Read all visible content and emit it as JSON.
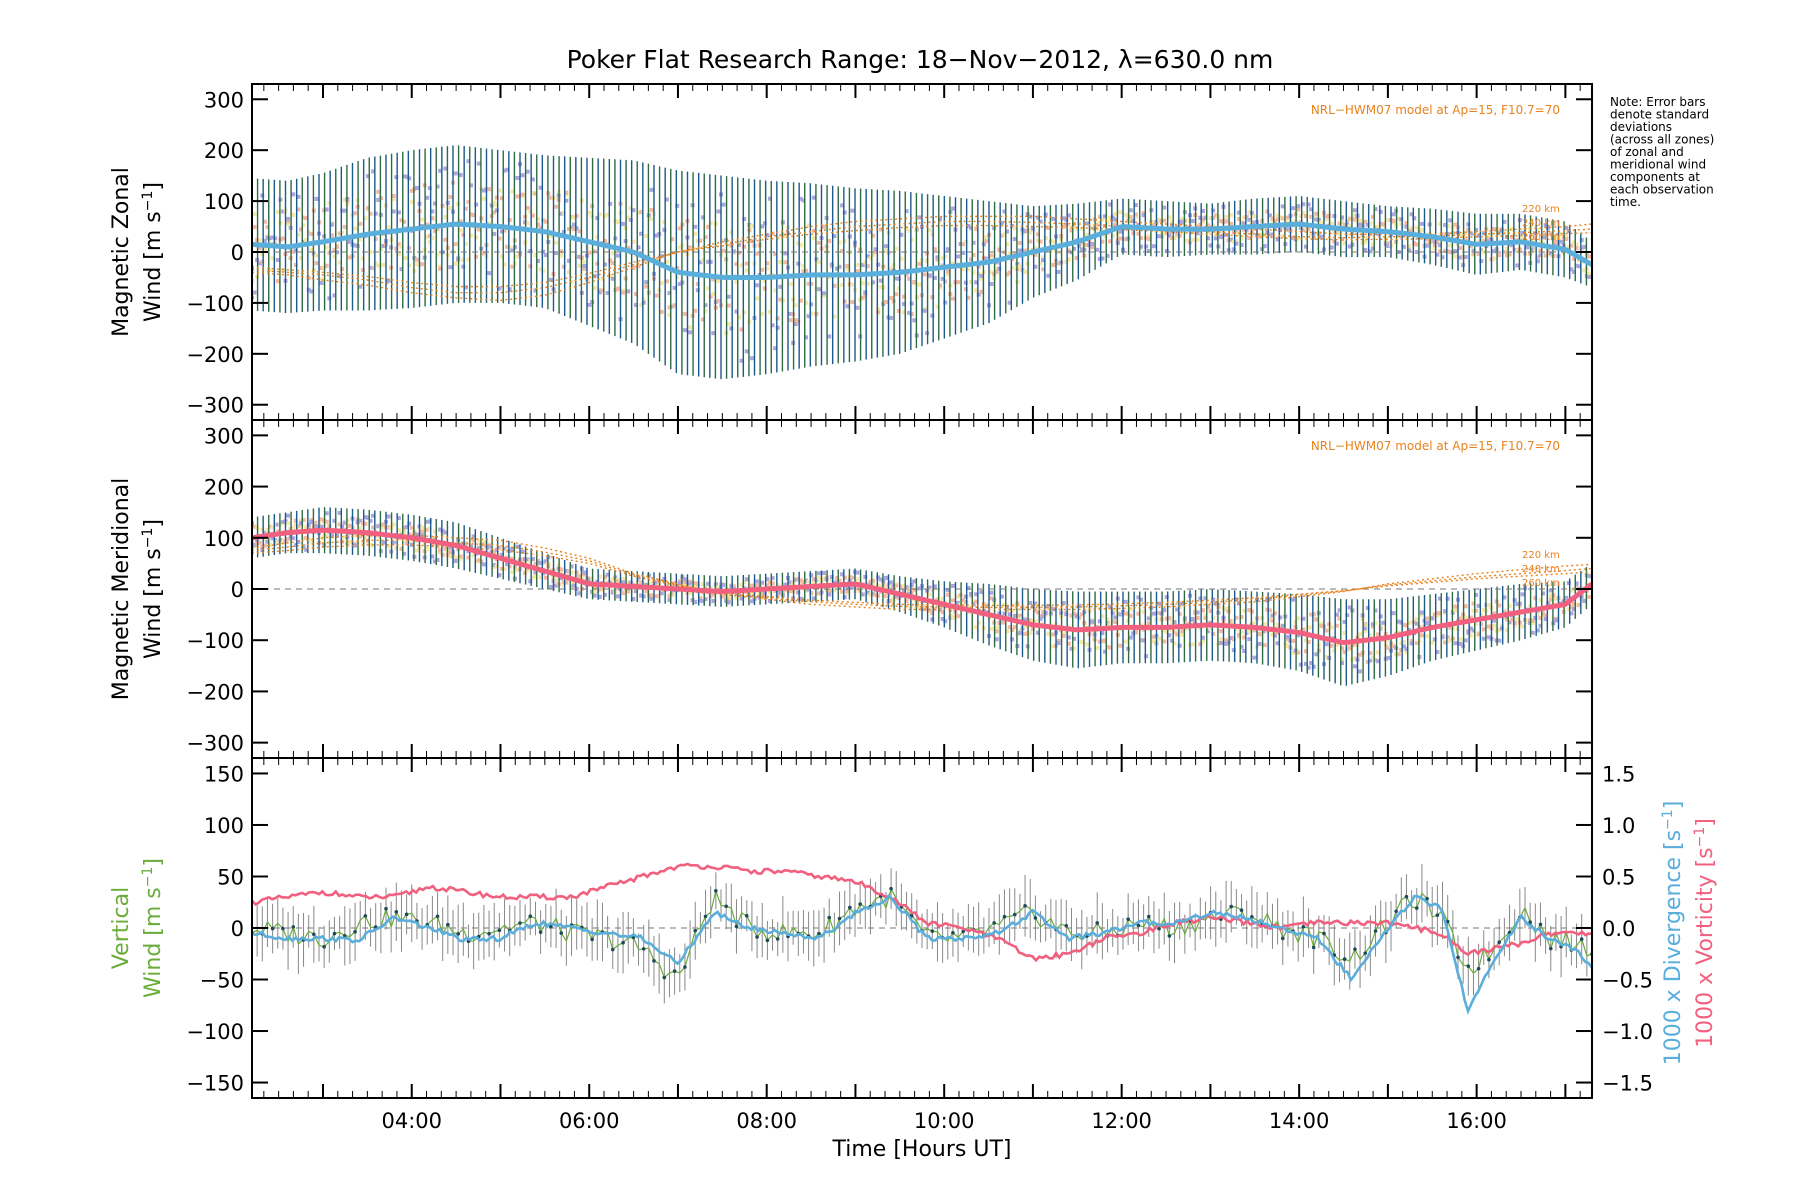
{
  "title": "Poker Flat Research Range: 18−Nov−2012, λ=630.0 nm",
  "note": [
    "Note: Error bars",
    "denote standard",
    "deviations",
    "(across all zones)",
    "of zonal and",
    "meridional wind",
    "components at",
    "each observation",
    "time."
  ],
  "colors": {
    "mean_blue": "#5aaedc",
    "mean_pink": "#f2607f",
    "err_blue": "#1a5a8c",
    "err_green": "#2f6a45",
    "zone_purple": "#aaa6e0",
    "zone_peach": "#f6b8a0",
    "zone_yellow": "#f6e8a6",
    "model_orange": "#e8821e",
    "vertical_green": "#6aac3a",
    "grey_err": "#888888"
  },
  "chart_data": [
    {
      "type": "line",
      "panel": "zonal",
      "ylabel": [
        "Magnetic Zonal",
        "Wind [m s",
        "−1",
        "]"
      ],
      "ylim": [
        -330,
        330
      ],
      "yticks": [
        300,
        200,
        100,
        0,
        -100,
        -200,
        -300
      ],
      "ytick_labels": [
        "300",
        "200",
        "100",
        "0",
        "−100",
        "−200",
        "−300"
      ],
      "model_label": "NRL−HWM07 model at Ap=15, F10.7=70",
      "model_alt_labels": [
        "220 km",
        "240 km",
        "260 km"
      ],
      "x": [
        2.2,
        2.6,
        3.0,
        3.5,
        4.0,
        4.5,
        5.0,
        5.5,
        6.0,
        6.5,
        7.0,
        7.5,
        8.0,
        8.5,
        9.0,
        9.5,
        10.0,
        10.5,
        11.0,
        11.5,
        12.0,
        12.5,
        13.0,
        13.5,
        14.0,
        14.5,
        15.0,
        15.5,
        16.0,
        16.5,
        17.0,
        17.3
      ],
      "mean": [
        15,
        10,
        20,
        35,
        45,
        55,
        50,
        40,
        20,
        0,
        -40,
        -50,
        -50,
        -45,
        -45,
        -40,
        -30,
        -20,
        0,
        20,
        50,
        45,
        45,
        50,
        55,
        45,
        40,
        30,
        15,
        20,
        5,
        -25
      ],
      "err_half": [
        130,
        130,
        135,
        150,
        155,
        155,
        150,
        150,
        165,
        180,
        200,
        200,
        190,
        180,
        170,
        160,
        140,
        120,
        90,
        75,
        55,
        55,
        50,
        55,
        55,
        55,
        50,
        55,
        60,
        55,
        55,
        45
      ],
      "models": [
        {
          "name": "220 km",
          "values": [
            -40,
            -45,
            -55,
            -65,
            -80,
            -90,
            -95,
            -85,
            -60,
            -30,
            0,
            20,
            35,
            50,
            60,
            65,
            70,
            70,
            70,
            65,
            60,
            55,
            50,
            45,
            40,
            35,
            35,
            35,
            40,
            45,
            50,
            55
          ]
        },
        {
          "name": "240 km",
          "values": [
            -35,
            -40,
            -45,
            -55,
            -70,
            -80,
            -80,
            -70,
            -50,
            -25,
            0,
            15,
            30,
            40,
            50,
            55,
            60,
            60,
            58,
            55,
            50,
            45,
            40,
            35,
            30,
            28,
            30,
            30,
            35,
            38,
            42,
            45
          ]
        },
        {
          "name": "260 km",
          "values": [
            -30,
            -35,
            -40,
            -48,
            -60,
            -68,
            -68,
            -60,
            -42,
            -20,
            0,
            12,
            25,
            35,
            42,
            48,
            52,
            52,
            50,
            48,
            44,
            40,
            35,
            30,
            26,
            24,
            25,
            26,
            30,
            32,
            36,
            38
          ]
        }
      ]
    },
    {
      "type": "line",
      "panel": "meridional",
      "ylabel": [
        "Magnetic Meridional",
        "Wind [m s",
        "−1",
        "]"
      ],
      "ylim": [
        -330,
        330
      ],
      "yticks": [
        300,
        200,
        100,
        0,
        -100,
        -200,
        -300
      ],
      "ytick_labels": [
        "300",
        "200",
        "100",
        "0",
        "−100",
        "−200",
        "−300"
      ],
      "model_label": "NRL−HWM07 model at Ap=15, F10.7=70",
      "model_alt_labels": [
        "220 km",
        "240 km",
        "260 km"
      ],
      "x": [
        2.2,
        2.6,
        3.0,
        3.5,
        4.0,
        4.5,
        5.0,
        5.5,
        6.0,
        6.5,
        7.0,
        7.5,
        8.0,
        8.5,
        9.0,
        9.5,
        10.0,
        10.5,
        11.0,
        11.5,
        12.0,
        12.5,
        13.0,
        13.5,
        14.0,
        14.5,
        15.0,
        15.5,
        16.0,
        16.5,
        17.0,
        17.3
      ],
      "mean": [
        100,
        110,
        115,
        110,
        100,
        85,
        60,
        35,
        10,
        5,
        0,
        -5,
        0,
        5,
        10,
        -10,
        -30,
        -50,
        -70,
        -80,
        -75,
        -75,
        -70,
        -75,
        -85,
        -105,
        -95,
        -75,
        -60,
        -45,
        -30,
        10
      ],
      "err_half": [
        40,
        40,
        45,
        45,
        45,
        45,
        40,
        35,
        30,
        30,
        30,
        30,
        30,
        30,
        30,
        35,
        45,
        60,
        70,
        75,
        70,
        70,
        70,
        70,
        75,
        85,
        75,
        65,
        60,
        55,
        45,
        40
      ],
      "models": [
        {
          "name": "220 km",
          "values": [
            80,
            90,
            100,
            105,
            105,
            100,
            95,
            80,
            60,
            30,
            10,
            -10,
            -20,
            -30,
            -35,
            -40,
            -40,
            -40,
            -40,
            -40,
            -38,
            -35,
            -30,
            -25,
            -15,
            -5,
            10,
            20,
            30,
            38,
            45,
            48
          ]
        },
        {
          "name": "240 km",
          "values": [
            75,
            82,
            90,
            95,
            95,
            90,
            85,
            72,
            55,
            28,
            8,
            -8,
            -18,
            -25,
            -30,
            -34,
            -35,
            -36,
            -36,
            -35,
            -33,
            -30,
            -26,
            -20,
            -12,
            -4,
            8,
            16,
            24,
            30,
            36,
            40
          ]
        },
        {
          "name": "260 km",
          "values": [
            70,
            75,
            82,
            86,
            86,
            82,
            76,
            65,
            50,
            25,
            6,
            -6,
            -15,
            -22,
            -26,
            -30,
            -31,
            -32,
            -32,
            -31,
            -29,
            -26,
            -22,
            -17,
            -10,
            -3,
            6,
            13,
            20,
            25,
            30,
            33
          ]
        }
      ]
    },
    {
      "type": "line",
      "panel": "vertical",
      "ylabel_left": [
        "Vertical",
        "Wind [m s",
        "−1",
        "]"
      ],
      "ylabel_right_div": [
        "1000 x Divergence [s",
        "−1",
        "]"
      ],
      "ylabel_right_vort": [
        "1000 x Vorticity [s",
        "−1",
        "]"
      ],
      "ylim": [
        -165,
        165
      ],
      "yticks": [
        150,
        100,
        50,
        0,
        -50,
        -100,
        -150
      ],
      "ytick_labels": [
        "150",
        "100",
        "50",
        "0",
        "−50",
        "−100",
        "−150"
      ],
      "y2lim": [
        -1.65,
        1.65
      ],
      "y2ticks": [
        1.5,
        1.0,
        0.5,
        0.0,
        -0.5,
        -1.0,
        -1.5
      ],
      "y2tick_labels": [
        "1.5",
        "1.0",
        "0.5",
        "0.0",
        "−0.5",
        "−1.0",
        "−1.5"
      ],
      "xlabel": "Time [Hours UT]",
      "xlim": [
        2.2,
        17.3
      ],
      "xticks": [
        4,
        6,
        8,
        10,
        12,
        14,
        16
      ],
      "xtick_labels": [
        "04:00",
        "06:00",
        "08:00",
        "10:00",
        "12:00",
        "14:00",
        "16:00"
      ],
      "divergence": {
        "x": [
          2.2,
          2.6,
          3.0,
          3.4,
          3.8,
          4.2,
          4.6,
          5.0,
          5.4,
          5.8,
          6.2,
          6.6,
          7.0,
          7.4,
          7.8,
          8.2,
          8.6,
          9.0,
          9.4,
          9.8,
          10.2,
          10.6,
          11.0,
          11.4,
          11.8,
          12.2,
          12.6,
          13.0,
          13.4,
          13.8,
          14.2,
          14.6,
          15.0,
          15.3,
          15.6,
          15.9,
          16.2,
          16.5,
          16.8,
          17.1,
          17.3
        ],
        "values": [
          -0.05,
          -0.1,
          -0.1,
          -0.12,
          0.1,
          0.0,
          -0.12,
          -0.1,
          0.05,
          0.0,
          -0.05,
          -0.1,
          -0.35,
          0.15,
          0.0,
          -0.05,
          -0.1,
          0.15,
          0.3,
          -0.1,
          -0.1,
          -0.05,
          0.15,
          -0.1,
          -0.05,
          0.05,
          0.05,
          0.15,
          0.1,
          0.0,
          -0.1,
          -0.5,
          0.0,
          0.3,
          0.2,
          -0.8,
          -0.3,
          0.1,
          -0.1,
          -0.2,
          -0.4
        ]
      },
      "vorticity": {
        "x": [
          2.2,
          2.6,
          3.0,
          3.4,
          3.8,
          4.2,
          4.6,
          5.0,
          5.4,
          5.8,
          6.2,
          6.6,
          7.0,
          7.4,
          7.8,
          8.2,
          8.6,
          9.0,
          9.4,
          9.8,
          10.2,
          10.6,
          11.0,
          11.4,
          11.8,
          12.2,
          12.6,
          13.0,
          13.4,
          13.8,
          14.2,
          14.6,
          15.0,
          15.3,
          15.6,
          15.9,
          16.2,
          16.5,
          16.8,
          17.1,
          17.3
        ],
        "values": [
          0.25,
          0.3,
          0.35,
          0.3,
          0.3,
          0.4,
          0.35,
          0.3,
          0.3,
          0.3,
          0.4,
          0.5,
          0.6,
          0.6,
          0.55,
          0.55,
          0.5,
          0.45,
          0.3,
          0.05,
          0.0,
          -0.1,
          -0.3,
          -0.25,
          -0.1,
          -0.05,
          0.05,
          0.1,
          0.05,
          0.0,
          0.05,
          0.05,
          0.05,
          0.0,
          -0.05,
          -0.25,
          -0.2,
          -0.15,
          -0.05,
          -0.05,
          -0.05
        ]
      },
      "vertical_wind": {
        "x": [
          2.2,
          2.6,
          3.0,
          3.4,
          3.8,
          4.2,
          4.6,
          5.0,
          5.4,
          5.8,
          6.2,
          6.6,
          7.0,
          7.4,
          7.8,
          8.2,
          8.6,
          9.0,
          9.4,
          9.8,
          10.2,
          10.6,
          11.0,
          11.4,
          11.8,
          12.2,
          12.6,
          13.0,
          13.4,
          13.8,
          14.2,
          14.6,
          15.0,
          15.3,
          15.6,
          15.9,
          16.2,
          16.5,
          16.8,
          17.1,
          17.3
        ],
        "values": [
          0,
          -5,
          -10,
          5,
          10,
          5,
          -5,
          0,
          5,
          -5,
          -10,
          -20,
          -50,
          30,
          0,
          -5,
          -5,
          20,
          30,
          -10,
          -10,
          0,
          15,
          -5,
          -5,
          5,
          0,
          10,
          15,
          0,
          -10,
          -30,
          5,
          30,
          10,
          -40,
          -20,
          20,
          -10,
          -15,
          -20
        ]
      },
      "vertical_err_half": 25
    }
  ]
}
